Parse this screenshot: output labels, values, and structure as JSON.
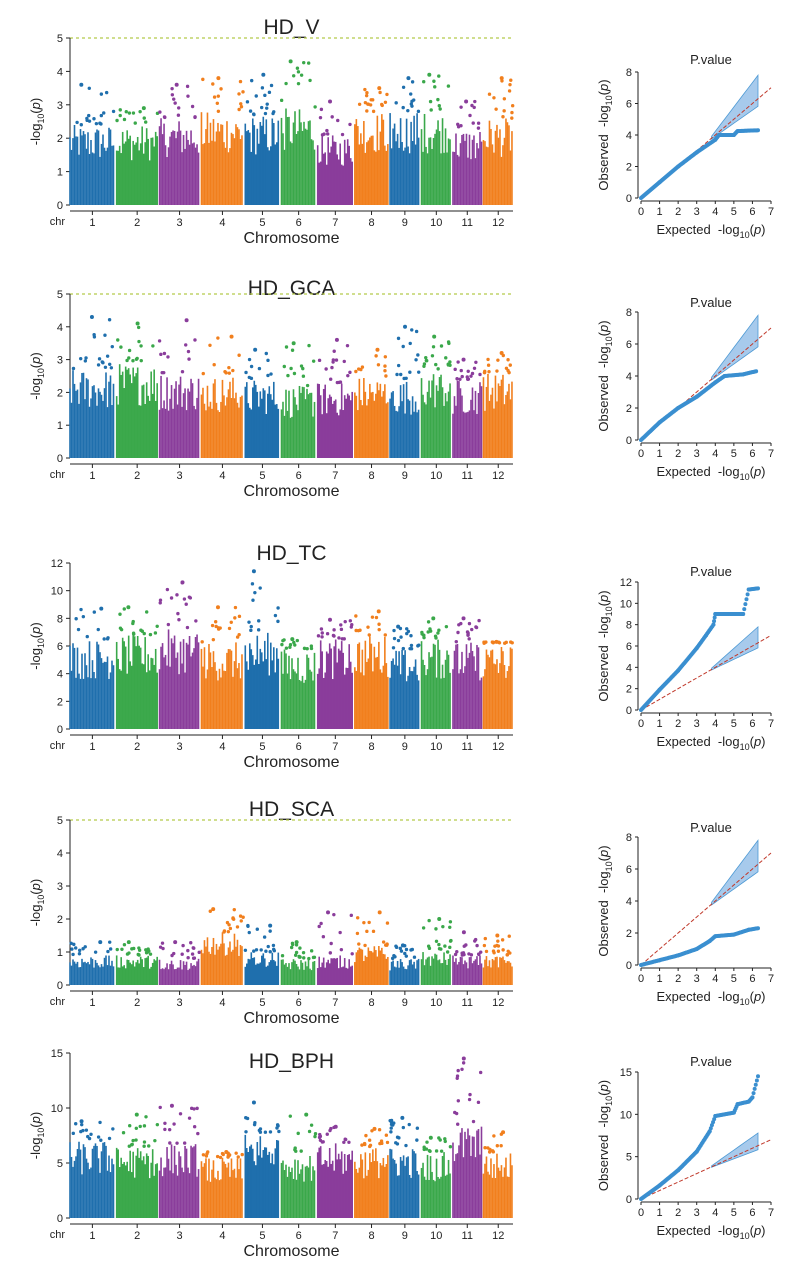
{
  "colors": {
    "blue": "#1f6fad",
    "green": "#3aa84a",
    "purple": "#8a3d9b",
    "orange": "#f17f1d",
    "qq_points": "#3a8fd0",
    "qq_band": "#9ec5ea",
    "expected_line": "#c0392b",
    "threshold_line": "#b5c94a"
  },
  "chart_data": [
    {
      "type": "scatter",
      "subtype": "manhattan",
      "title": "HD_V",
      "xlabel": "Chromosome",
      "x_prefix": "chr",
      "ylabel": "-log10(p)",
      "ylim": [
        0,
        5
      ],
      "yticks": [
        0,
        1,
        2,
        3,
        4,
        5
      ],
      "threshold": 5,
      "chromosomes": [
        "1",
        "2",
        "3",
        "4",
        "5",
        "6",
        "7",
        "8",
        "9",
        "10",
        "11",
        "12"
      ],
      "chrom_colors": [
        "blue",
        "green",
        "purple",
        "orange",
        "blue",
        "green",
        "purple",
        "orange",
        "blue",
        "green",
        "purple",
        "orange"
      ],
      "chrom_body_max": [
        2.4,
        2.4,
        2.6,
        2.8,
        2.7,
        2.9,
        2.1,
        2.8,
        2.8,
        2.8,
        2.3,
        2.6
      ],
      "chrom_peak": [
        3.6,
        2.9,
        3.6,
        3.8,
        3.9,
        4.3,
        3.1,
        3.5,
        3.8,
        3.9,
        3.1,
        3.8
      ]
    },
    {
      "type": "scatter",
      "subtype": "qq",
      "title": "P.value",
      "xlabel": "Expected  -log10(p)",
      "ylabel": "Observed  -log10(p)",
      "xlim": [
        0,
        7
      ],
      "ylim": [
        0,
        8
      ],
      "xticks": [
        0,
        1,
        2,
        3,
        4,
        5,
        6,
        7
      ],
      "yticks": [
        0,
        2,
        4,
        6,
        8
      ],
      "observed_curve": [
        [
          0,
          0
        ],
        [
          1,
          1.0
        ],
        [
          2,
          2.0
        ],
        [
          3,
          2.9
        ],
        [
          4,
          3.7
        ],
        [
          4.2,
          4.0
        ],
        [
          5,
          4.0
        ],
        [
          5.2,
          4.25
        ],
        [
          6.3,
          4.3
        ]
      ]
    },
    {
      "type": "scatter",
      "subtype": "manhattan",
      "title": "HD_GCA",
      "xlabel": "Chromosome",
      "x_prefix": "chr",
      "ylabel": "-log10(p)",
      "ylim": [
        0,
        5
      ],
      "yticks": [
        0,
        1,
        2,
        3,
        4,
        5
      ],
      "threshold": 5,
      "chromosomes": [
        "1",
        "2",
        "3",
        "4",
        "5",
        "6",
        "7",
        "8",
        "9",
        "10",
        "11",
        "12"
      ],
      "chrom_colors": [
        "blue",
        "green",
        "purple",
        "orange",
        "blue",
        "green",
        "purple",
        "orange",
        "blue",
        "green",
        "purple",
        "orange"
      ],
      "chrom_body_max": [
        2.7,
        2.9,
        2.6,
        2.5,
        2.4,
        2.2,
        2.3,
        2.5,
        2.4,
        2.7,
        2.4,
        2.6
      ],
      "chrom_peak": [
        4.3,
        4.1,
        4.2,
        3.7,
        3.3,
        3.5,
        3.6,
        3.3,
        4.0,
        3.7,
        3.0,
        3.2
      ]
    },
    {
      "type": "scatter",
      "subtype": "qq",
      "title": "P.value",
      "xlabel": "Expected  -log10(p)",
      "ylabel": "Observed  -log10(p)",
      "xlim": [
        0,
        7
      ],
      "ylim": [
        0,
        8
      ],
      "xticks": [
        0,
        1,
        2,
        3,
        4,
        5,
        6,
        7
      ],
      "yticks": [
        0,
        2,
        4,
        6,
        8
      ],
      "observed_curve": [
        [
          0,
          0
        ],
        [
          1,
          1.1
        ],
        [
          2,
          2.0
        ],
        [
          3,
          2.7
        ],
        [
          4,
          3.6
        ],
        [
          4.5,
          4.0
        ],
        [
          5.5,
          4.1
        ],
        [
          6.2,
          4.3
        ]
      ]
    },
    {
      "type": "scatter",
      "subtype": "manhattan",
      "title": "HD_TC",
      "xlabel": "Chromosome",
      "x_prefix": "chr",
      "ylabel": "-log10(p)",
      "ylim": [
        0,
        12
      ],
      "yticks": [
        0,
        2,
        4,
        6,
        8,
        10,
        12
      ],
      "threshold": null,
      "chromosomes": [
        "1",
        "2",
        "3",
        "4",
        "5",
        "6",
        "7",
        "8",
        "9",
        "10",
        "11",
        "12"
      ],
      "chrom_colors": [
        "blue",
        "green",
        "purple",
        "orange",
        "blue",
        "green",
        "purple",
        "orange",
        "blue",
        "green",
        "purple",
        "orange"
      ],
      "chrom_body_max": [
        6.5,
        6.8,
        7.2,
        6.3,
        7.0,
        5.8,
        6.5,
        6.8,
        5.8,
        6.5,
        6.3,
        6.2
      ],
      "chrom_peak": [
        8.7,
        8.8,
        10.6,
        8.8,
        11.4,
        6.5,
        7.9,
        8.5,
        7.4,
        8.0,
        8.0,
        6.3
      ]
    },
    {
      "type": "scatter",
      "subtype": "qq",
      "title": "P.value",
      "xlabel": "Expected  -log10(p)",
      "ylabel": "Observed  -log10(p)",
      "xlim": [
        0,
        7
      ],
      "ylim": [
        0,
        12
      ],
      "xticks": [
        0,
        1,
        2,
        3,
        4,
        5,
        6,
        7
      ],
      "yticks": [
        0,
        2,
        4,
        6,
        8,
        10,
        12
      ],
      "observed_curve": [
        [
          0,
          0
        ],
        [
          1,
          1.9
        ],
        [
          2,
          3.7
        ],
        [
          3,
          5.8
        ],
        [
          3.5,
          7.0
        ],
        [
          3.9,
          8.0
        ],
        [
          4.0,
          9.0
        ],
        [
          5.5,
          9.0
        ],
        [
          5.8,
          11.3
        ],
        [
          6.3,
          11.4
        ]
      ]
    },
    {
      "type": "scatter",
      "subtype": "manhattan",
      "title": "HD_SCA",
      "xlabel": "Chromosome",
      "x_prefix": "chr",
      "ylabel": "-log10(p)",
      "ylim": [
        0,
        5
      ],
      "yticks": [
        0,
        1,
        2,
        3,
        4,
        5
      ],
      "threshold": 5,
      "chromosomes": [
        "1",
        "2",
        "3",
        "4",
        "5",
        "6",
        "7",
        "8",
        "9",
        "10",
        "11",
        "12"
      ],
      "chrom_colors": [
        "blue",
        "green",
        "purple",
        "orange",
        "blue",
        "green",
        "purple",
        "orange",
        "blue",
        "green",
        "purple",
        "orange"
      ],
      "chrom_body_max": [
        0.9,
        0.9,
        0.8,
        1.6,
        1.0,
        0.8,
        0.9,
        1.2,
        0.8,
        1.0,
        0.9,
        0.9
      ],
      "chrom_peak": [
        1.3,
        1.3,
        1.3,
        2.3,
        1.8,
        1.3,
        2.2,
        2.2,
        1.2,
        2.0,
        1.6,
        1.5
      ]
    },
    {
      "type": "scatter",
      "subtype": "qq",
      "title": "P.value",
      "xlabel": "Expected  -log10(p)",
      "ylabel": "Observed  -log10(p)",
      "xlim": [
        0,
        7
      ],
      "ylim": [
        0,
        8
      ],
      "xticks": [
        0,
        1,
        2,
        3,
        4,
        5,
        6,
        7
      ],
      "yticks": [
        0,
        2,
        4,
        6,
        8
      ],
      "observed_curve": [
        [
          0,
          0
        ],
        [
          1,
          0.3
        ],
        [
          2,
          0.6
        ],
        [
          3,
          1.0
        ],
        [
          3.7,
          1.5
        ],
        [
          4.0,
          1.8
        ],
        [
          5.0,
          1.9
        ],
        [
          5.8,
          2.2
        ],
        [
          6.3,
          2.3
        ]
      ]
    },
    {
      "type": "scatter",
      "subtype": "manhattan",
      "title": "HD_BPH",
      "xlabel": "Chromosome",
      "x_prefix": "chr",
      "ylabel": "-log10(p)",
      "ylim": [
        0,
        15
      ],
      "yticks": [
        0,
        5,
        10,
        15
      ],
      "threshold": null,
      "chromosomes": [
        "1",
        "2",
        "3",
        "4",
        "5",
        "6",
        "7",
        "8",
        "9",
        "10",
        "11",
        "12"
      ],
      "chrom_colors": [
        "blue",
        "green",
        "purple",
        "orange",
        "blue",
        "green",
        "purple",
        "orange",
        "blue",
        "green",
        "purple",
        "orange"
      ],
      "chrom_body_max": [
        7.0,
        6.5,
        6.8,
        5.5,
        7.8,
        6.0,
        6.8,
        6.5,
        6.5,
        6.0,
        8.5,
        6.0
      ],
      "chrom_peak": [
        8.8,
        9.4,
        10.2,
        6.0,
        10.5,
        9.4,
        8.3,
        8.1,
        9.1,
        7.3,
        14.5,
        7.8
      ]
    },
    {
      "type": "scatter",
      "subtype": "qq",
      "title": "P.value",
      "xlabel": "Expected  -log10(p)",
      "ylabel": "Observed  -log10(p)",
      "xlim": [
        0,
        7
      ],
      "ylim": [
        0,
        15
      ],
      "xticks": [
        0,
        1,
        2,
        3,
        4,
        5,
        6,
        7
      ],
      "yticks": [
        0,
        5,
        10,
        15
      ],
      "observed_curve": [
        [
          0,
          0
        ],
        [
          1,
          1.6
        ],
        [
          2,
          3.4
        ],
        [
          3,
          5.6
        ],
        [
          3.7,
          8.0
        ],
        [
          4.0,
          9.8
        ],
        [
          5.0,
          10.2
        ],
        [
          5.2,
          11.2
        ],
        [
          5.8,
          11.5
        ],
        [
          6.0,
          12.0
        ],
        [
          6.3,
          14.5
        ]
      ]
    }
  ]
}
